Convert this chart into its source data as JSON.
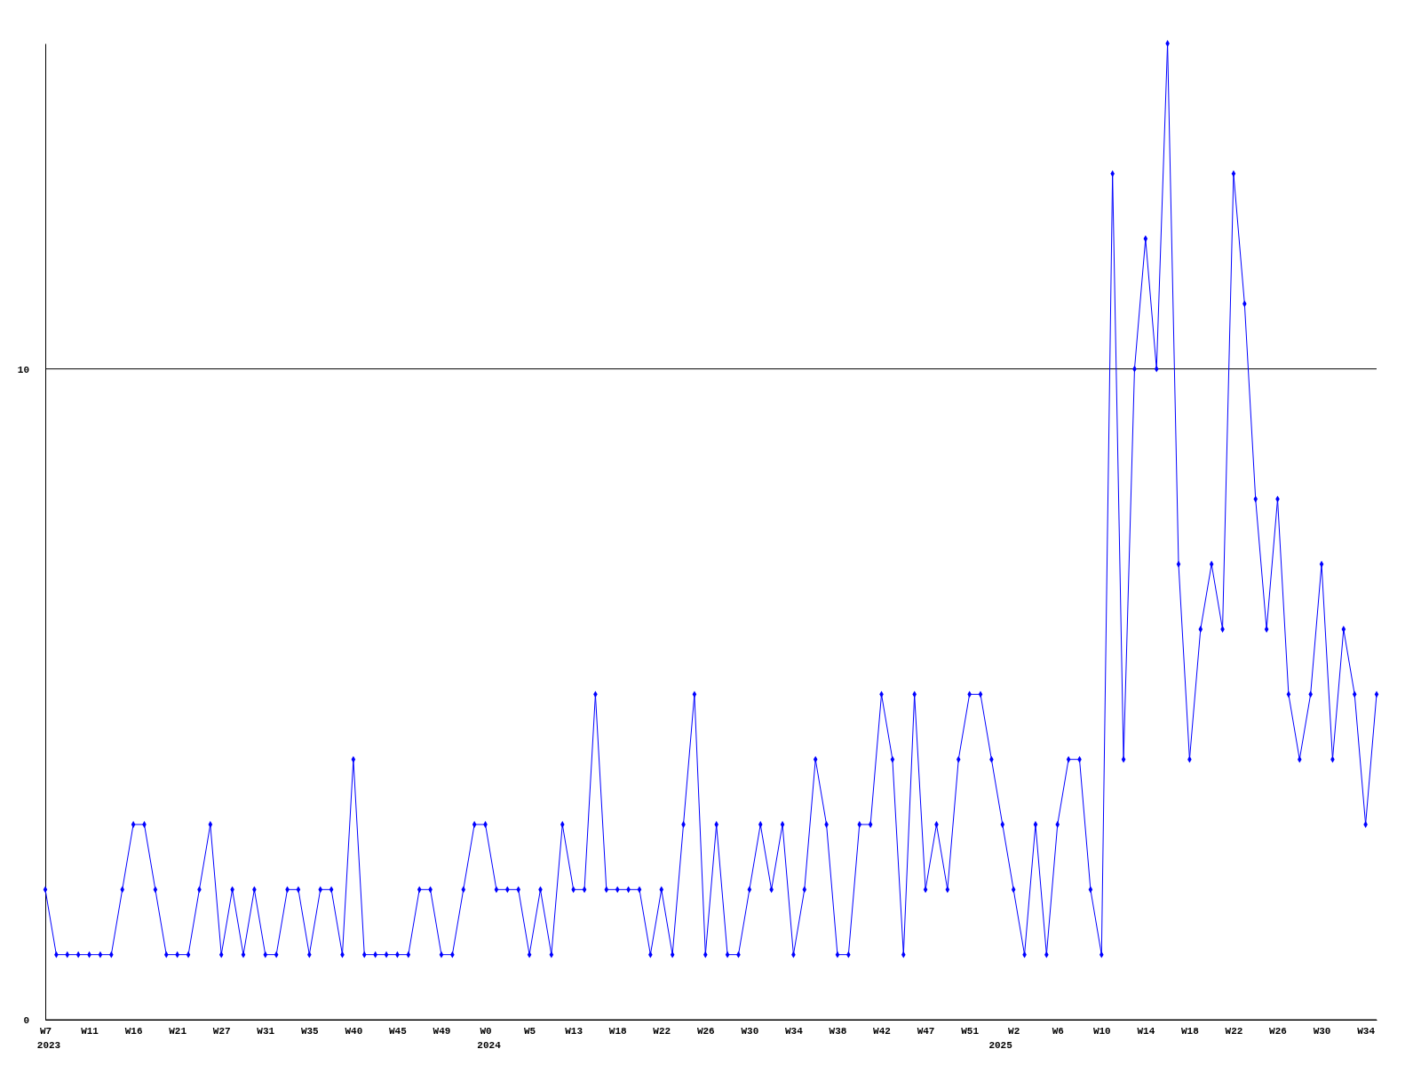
{
  "chart_data": {
    "type": "line",
    "categories": [
      "W7",
      null,
      null,
      null,
      "W11",
      null,
      null,
      null,
      "W16",
      null,
      null,
      null,
      "W21",
      null,
      null,
      null,
      "W27",
      null,
      null,
      null,
      "W31",
      null,
      null,
      null,
      "W35",
      null,
      null,
      null,
      "W40",
      null,
      null,
      null,
      "W45",
      null,
      null,
      null,
      "W49",
      null,
      null,
      null,
      "W0",
      null,
      null,
      null,
      "W5",
      null,
      null,
      null,
      "W13",
      null,
      null,
      null,
      "W18",
      null,
      null,
      null,
      "W22",
      null,
      null,
      null,
      "W26",
      null,
      null,
      null,
      "W30",
      null,
      null,
      null,
      "W34",
      null,
      null,
      null,
      "W38",
      null,
      null,
      null,
      "W42",
      null,
      null,
      null,
      "W47",
      null,
      null,
      null,
      "W51",
      null,
      null,
      null,
      "W2",
      null,
      null,
      null,
      "W6",
      null,
      null,
      null,
      "W10",
      null,
      null,
      null,
      "W14",
      null,
      null,
      null,
      "W18",
      null,
      null,
      null,
      "W22",
      null,
      null,
      null,
      "W26",
      null,
      null,
      null,
      "W30",
      null,
      null,
      null,
      "W34",
      null
    ],
    "series": [
      {
        "color": "#0000ff",
        "values": [
          2,
          1,
          1,
          1,
          1,
          1,
          1,
          2,
          3,
          3,
          2,
          1,
          1,
          1,
          2,
          3,
          1,
          2,
          1,
          2,
          1,
          1,
          2,
          2,
          1,
          2,
          2,
          1,
          4,
          1,
          1,
          1,
          1,
          1,
          2,
          2,
          1,
          1,
          2,
          3,
          3,
          2,
          2,
          2,
          1,
          2,
          1,
          3,
          2,
          2,
          5,
          2,
          2,
          2,
          2,
          1,
          2,
          1,
          3,
          5,
          1,
          3,
          1,
          1,
          2,
          3,
          2,
          3,
          1,
          2,
          4,
          3,
          1,
          1,
          3,
          3,
          5,
          4,
          1,
          5,
          2,
          3,
          2,
          4,
          5,
          5,
          4,
          3,
          2,
          1,
          3,
          1,
          3,
          4,
          4,
          2,
          1,
          13,
          4,
          10,
          12,
          10,
          15,
          7,
          4,
          6,
          7,
          6,
          13,
          11,
          8,
          6,
          8,
          5,
          4,
          5,
          7,
          4,
          6,
          5,
          3,
          5
        ]
      }
    ],
    "ylim": [
      0,
      15
    ],
    "yticks": [
      0,
      10
    ],
    "grid": "y",
    "marker": "diamond",
    "annotations": [
      "2023",
      "2024",
      "2025"
    ]
  }
}
